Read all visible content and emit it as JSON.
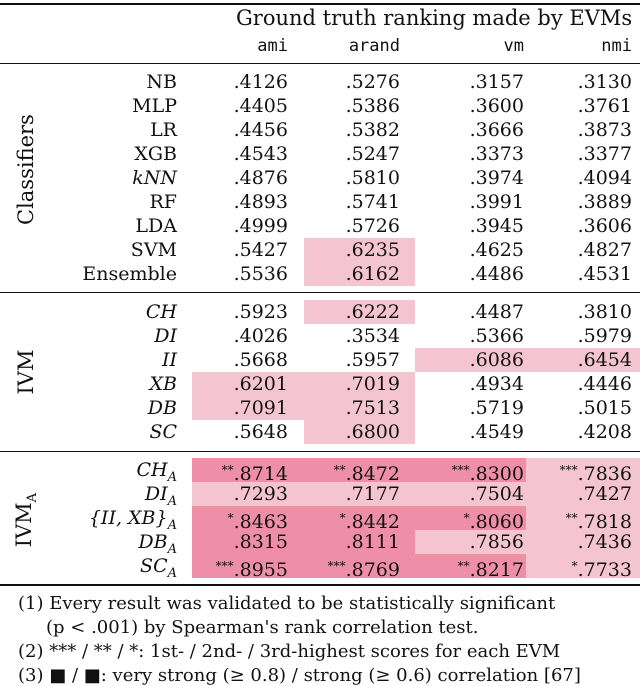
{
  "header": {
    "title": "Ground truth ranking made by EVMs",
    "columns": [
      "ami",
      "arand",
      "vm",
      "nmi"
    ]
  },
  "sections": [
    {
      "label": "Classifiers",
      "rows": [
        {
          "name": "NB",
          "values": [
            ".4126",
            ".5276",
            ".3157",
            ".3130"
          ]
        },
        {
          "name": "MLP",
          "values": [
            ".4405",
            ".5386",
            ".3600",
            ".3761"
          ]
        },
        {
          "name": "LR",
          "values": [
            ".4456",
            ".5382",
            ".3666",
            ".3873"
          ]
        },
        {
          "name": "XGB",
          "values": [
            ".4543",
            ".5247",
            ".3373",
            ".3377"
          ]
        },
        {
          "name": "kNN",
          "values": [
            ".4876",
            ".5810",
            ".3974",
            ".4094"
          ]
        },
        {
          "name": "RF",
          "values": [
            ".4893",
            ".5741",
            ".3991",
            ".3889"
          ]
        },
        {
          "name": "LDA",
          "values": [
            ".4999",
            ".5726",
            ".3945",
            ".3606"
          ]
        },
        {
          "name": "SVM",
          "values": [
            ".5427",
            ".6235",
            ".4625",
            ".4827"
          ]
        },
        {
          "name": "Ensemble",
          "values": [
            ".5536",
            ".6162",
            ".4486",
            ".4531"
          ]
        }
      ]
    },
    {
      "label": "IVM",
      "rows": [
        {
          "name": "CH",
          "values": [
            ".5923",
            ".6222",
            ".4487",
            ".3810"
          ]
        },
        {
          "name": "DI",
          "values": [
            ".4026",
            ".3534",
            ".5366",
            ".5979"
          ]
        },
        {
          "name": "II",
          "values": [
            ".5668",
            ".5957",
            ".6086",
            ".6454"
          ]
        },
        {
          "name": "XB",
          "values": [
            ".6201",
            ".7019",
            ".4934",
            ".4446"
          ]
        },
        {
          "name": "DB",
          "values": [
            ".7091",
            ".7513",
            ".5719",
            ".5015"
          ]
        },
        {
          "name": "SC",
          "values": [
            ".5648",
            ".6800",
            ".4549",
            ".4208"
          ]
        }
      ]
    },
    {
      "label": "IVM",
      "label_sub": "A",
      "rows": [
        {
          "name": "CH",
          "sub": "A",
          "values": [
            "**.8714",
            "**.8472",
            "***.8300",
            "***.7836"
          ]
        },
        {
          "name": "DI",
          "sub": "A",
          "values": [
            ".7293",
            ".7177",
            ".7504",
            ".7427"
          ]
        },
        {
          "name": "{II, XB}",
          "sub": "A",
          "values": [
            "*.8463",
            "*.8442",
            "*.8060",
            "**.7818"
          ]
        },
        {
          "name": "DB",
          "sub": "A",
          "values": [
            ".8315",
            ".8111",
            ".7856",
            ".7436"
          ]
        },
        {
          "name": "SC",
          "sub": "A",
          "values": [
            "***.8955",
            "***.8769",
            "**.8217",
            "*.7733"
          ]
        }
      ]
    }
  ],
  "notes": [
    "(1) Every result was validated to be statistically significant",
    "(p < .001) by Spearman's rank correlation test.",
    "(2) *** / ** / *: 1st- / 2nd- / 3rd-highest scores for each EVM",
    "(3) ■ / ■: very strong (≥ 0.8) / strong (≥ 0.6) correlation [67]"
  ],
  "colors": {
    "very_strong": "#ee8fa7",
    "strong": "#f4c5d1"
  }
}
